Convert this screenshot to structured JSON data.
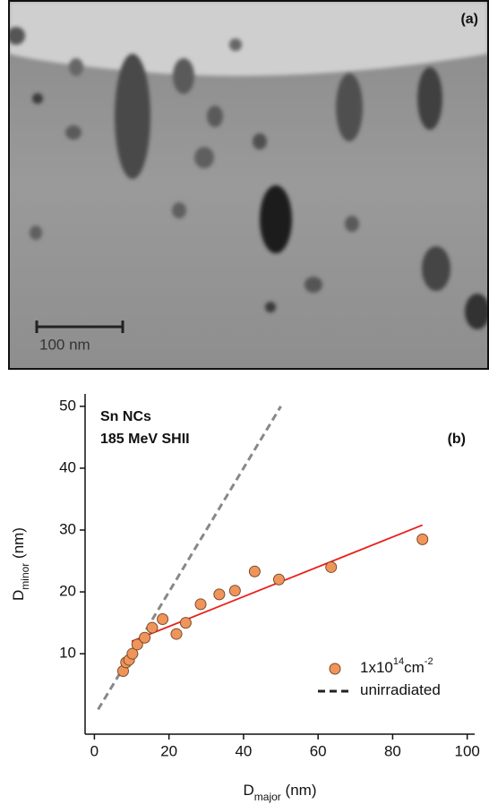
{
  "image_panel": {
    "label": "(a)",
    "scale_bar": "100 nm"
  },
  "chart_data": {
    "type": "scatter",
    "panel_label": "(b)",
    "annotations": [
      "Sn NCs",
      "185 MeV SHII"
    ],
    "xlabel": {
      "main": "D",
      "sub": "major",
      "unit": " (nm)"
    },
    "ylabel": {
      "main": "D",
      "sub": "minor",
      "unit": " (nm)"
    },
    "xlim": [
      -2.5,
      102
    ],
    "ylim": [
      -3,
      52
    ],
    "xticks": [
      0,
      20,
      40,
      60,
      80,
      100
    ],
    "yticks": [
      10,
      20,
      30,
      40,
      50
    ],
    "series": [
      {
        "kind": "points",
        "color": "#f0955a",
        "x": [
          7.7,
          8.5,
          9.3,
          10.2,
          11.5,
          13.5,
          15.5,
          18.3,
          22,
          24.5,
          28.5,
          33.5,
          37.7,
          43,
          49.5,
          63.5,
          88
        ],
        "y": [
          7.2,
          8.6,
          9,
          10,
          11.5,
          12.6,
          14.2,
          15.6,
          13.2,
          15,
          18,
          19.6,
          20.2,
          23.3,
          22,
          24,
          28.5
        ]
      },
      {
        "kind": "fit",
        "color": "#e8201a",
        "x": [
          10,
          88
        ],
        "y": [
          12,
          30.8
        ]
      },
      {
        "kind": "dashed",
        "color": "#888888",
        "x": [
          1,
          50
        ],
        "y": [
          1,
          50
        ]
      }
    ],
    "legend": [
      {
        "series": 0,
        "parts": [
          "1x10",
          "14",
          "cm",
          "-2"
        ]
      },
      {
        "series": 2,
        "parts": [
          "unirradiated"
        ]
      }
    ]
  }
}
